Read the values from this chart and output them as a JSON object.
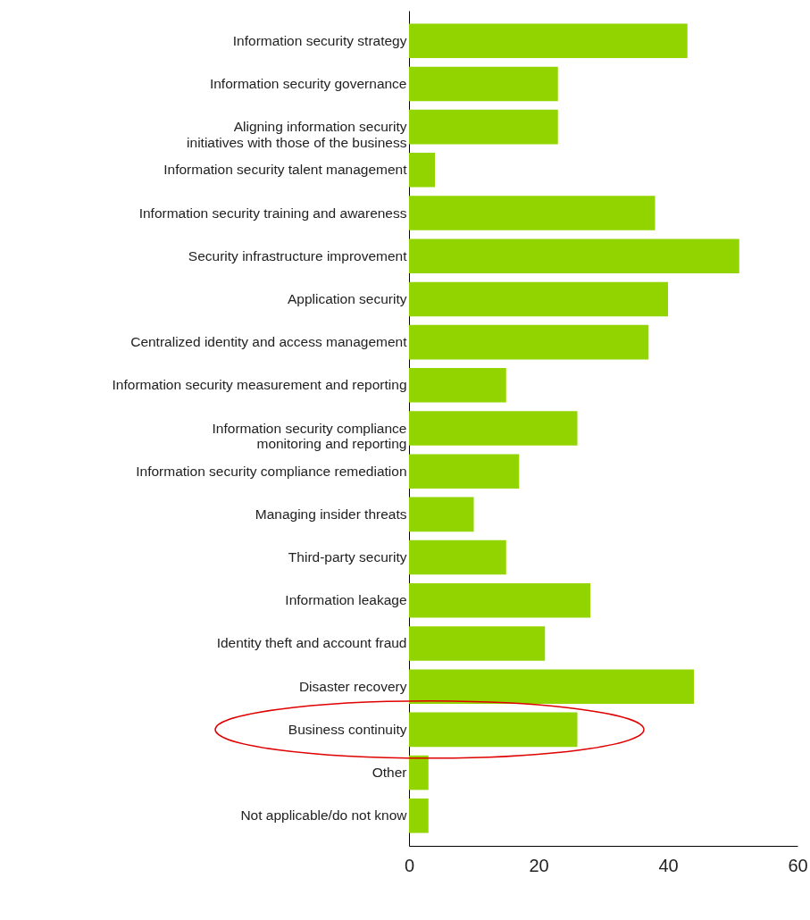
{
  "chart_data": {
    "type": "bar",
    "orientation": "horizontal",
    "color": "#92d400",
    "categories": [
      "Information security strategy",
      "Information security governance",
      "Aligning information security\ninitiatives with those of the business",
      "Information security talent management",
      "Information security training and awareness",
      "Security infrastructure improvement",
      "Application security",
      "Centralized identity and access management",
      "Information security measurement and reporting",
      "Information security compliance\nmonitoring and reporting",
      "Information security compliance remediation",
      "Managing insider threats",
      "Third-party security",
      "Information leakage",
      "Identity theft and account fraud",
      "Disaster recovery",
      "Business continuity",
      "Other",
      "Not applicable/do not know"
    ],
    "values": [
      43,
      23,
      23,
      4,
      38,
      51,
      40,
      37,
      15,
      26,
      17,
      10,
      15,
      28,
      21,
      44,
      26,
      3,
      3
    ],
    "xlim": [
      0,
      60
    ],
    "xticks": [
      0,
      20,
      40,
      60
    ],
    "grid": false
  }
}
